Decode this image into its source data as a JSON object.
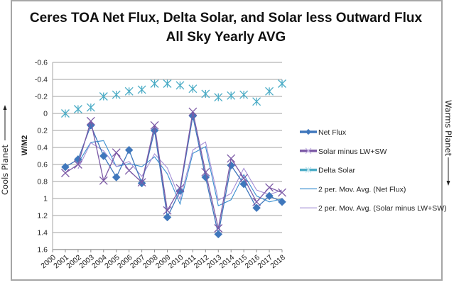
{
  "chart_data": {
    "type": "line",
    "title": "Ceres TOA Net Flux, Delta Solar, and Solar less Outward Flux",
    "subtitle": "All Sky Yearly AVG",
    "xlabel": "",
    "ylabel": "W/M2",
    "y_inverted": true,
    "ylim": [
      -0.6,
      1.6
    ],
    "yticks": [
      "-0.6",
      "-0.4",
      "-0.2",
      "0",
      "0.2",
      "0.4",
      "0.6",
      "0.8",
      "1",
      "1.2",
      "1.4",
      "1.6"
    ],
    "ytick_values": [
      -0.6,
      -0.4,
      -0.2,
      0,
      0.2,
      0.4,
      0.6,
      0.8,
      1.0,
      1.2,
      1.4,
      1.6
    ],
    "categories": [
      "2000",
      "2001",
      "2002",
      "2003",
      "2004",
      "2005",
      "2006",
      "2007",
      "2008",
      "2009",
      "2010",
      "2011",
      "2012",
      "2013",
      "2014",
      "2015",
      "2016",
      "2017",
      "2018"
    ],
    "grid": "horizontal",
    "legend_position": "right",
    "series": [
      {
        "name": "Net Flux",
        "marker": "diamond",
        "color": "#3f77bc",
        "values": [
          null,
          0.63,
          0.54,
          0.14,
          0.5,
          0.75,
          0.43,
          0.82,
          0.2,
          1.22,
          0.91,
          0.03,
          0.75,
          1.42,
          0.61,
          0.83,
          1.11,
          0.97,
          1.04
        ]
      },
      {
        "name": "Solar minus LW+SW",
        "marker": "x",
        "color": "#7c5aa6",
        "values": [
          null,
          0.7,
          0.6,
          0.09,
          0.79,
          0.46,
          0.67,
          0.81,
          0.14,
          1.14,
          0.88,
          -0.02,
          0.69,
          1.35,
          0.53,
          0.76,
          1.04,
          0.87,
          0.93
        ]
      },
      {
        "name": "Delta Solar",
        "marker": "star",
        "color": "#4bacc6",
        "line": false,
        "values": [
          null,
          0.0,
          -0.05,
          -0.07,
          -0.2,
          -0.22,
          -0.26,
          -0.28,
          -0.35,
          -0.35,
          -0.33,
          -0.29,
          -0.23,
          -0.19,
          -0.21,
          -0.22,
          -0.14,
          -0.26,
          -0.35
        ]
      },
      {
        "name": "2 per. Mov. Avg. (Net Flux)",
        "type": "moving_average",
        "period": 2,
        "source": "Net Flux",
        "color": "#3a8fd0"
      },
      {
        "name": "2 per. Mov. Avg. (Solar minus LW+SW)",
        "type": "moving_average",
        "period": 2,
        "source": "Solar minus LW+SW",
        "color": "#a58fd6"
      }
    ],
    "annotations": {
      "left": "Cools Planet",
      "right": "Warms Planet"
    }
  },
  "legend": {
    "items": [
      {
        "label": "Net Flux"
      },
      {
        "label": "Solar minus LW+SW"
      },
      {
        "label": "Delta Solar"
      },
      {
        "label": "2 per. Mov. Avg. (Net Flux)"
      },
      {
        "label": "2 per. Mov. Avg. (Solar minus LW+SW)"
      }
    ]
  }
}
